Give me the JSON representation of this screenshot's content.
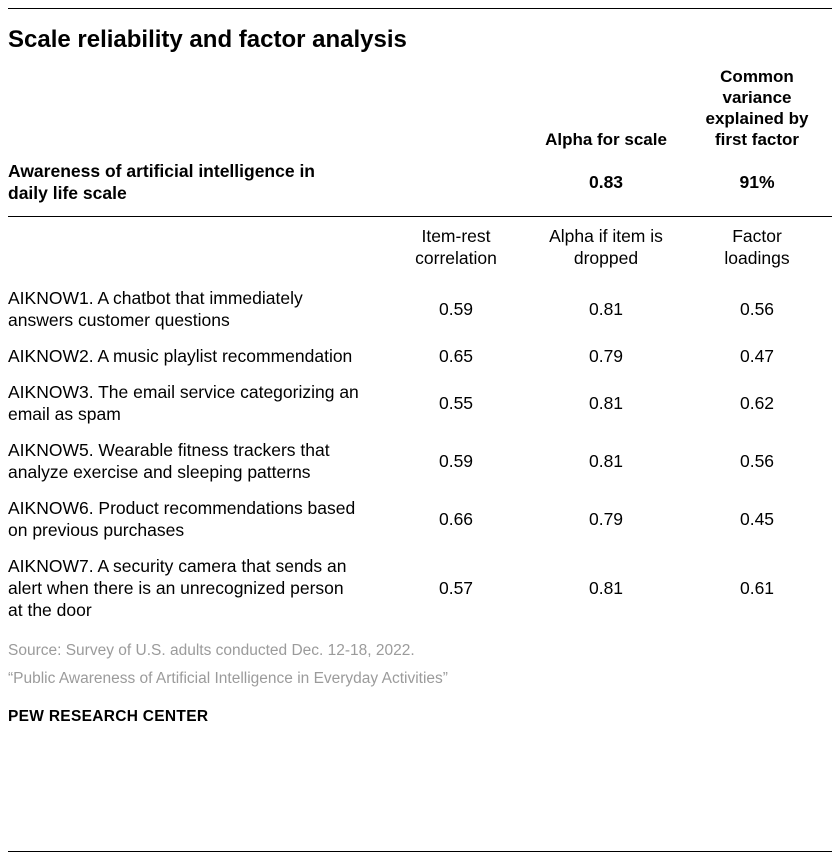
{
  "title": "Scale reliability and factor analysis",
  "header": {
    "alpha_for_scale": "Alpha for scale",
    "common_variance": "Common variance explained by first factor"
  },
  "chart_data": {
    "type": "table",
    "title": "Scale reliability and factor analysis",
    "scale": {
      "label": "Awareness of artificial intelligence in daily life scale",
      "alpha_for_scale": 0.83,
      "common_variance_explained_by_first_factor": "91%"
    },
    "columns": [
      "Item-rest correlation",
      "Alpha if item is dropped",
      "Factor loadings"
    ],
    "rows": [
      {
        "label": "AIKNOW1. A chatbot that immediately answers customer questions",
        "item_rest_correlation": 0.59,
        "alpha_if_dropped": 0.81,
        "factor_loading": 0.56
      },
      {
        "label": "AIKNOW2. A music playlist recommendation",
        "item_rest_correlation": 0.65,
        "alpha_if_dropped": 0.79,
        "factor_loading": 0.47
      },
      {
        "label": "AIKNOW3. The email service categorizing an email as spam",
        "item_rest_correlation": 0.55,
        "alpha_if_dropped": 0.81,
        "factor_loading": 0.62
      },
      {
        "label": "AIKNOW5. Wearable fitness trackers that analyze exercise and sleeping patterns",
        "item_rest_correlation": 0.59,
        "alpha_if_dropped": 0.81,
        "factor_loading": 0.56
      },
      {
        "label": "AIKNOW6. Product recommendations based on previous purchases",
        "item_rest_correlation": 0.66,
        "alpha_if_dropped": 0.79,
        "factor_loading": 0.45
      },
      {
        "label": "AIKNOW7. A security camera that sends an alert when there is an unrecognized person at the door",
        "item_rest_correlation": 0.57,
        "alpha_if_dropped": 0.81,
        "factor_loading": 0.61
      }
    ]
  },
  "footer": {
    "source": "Source: Survey of U.S. adults conducted Dec. 12-18, 2022.",
    "note": "“Public Awareness of Artificial Intelligence in Everyday Activities”",
    "brand": "PEW RESEARCH CENTER"
  }
}
